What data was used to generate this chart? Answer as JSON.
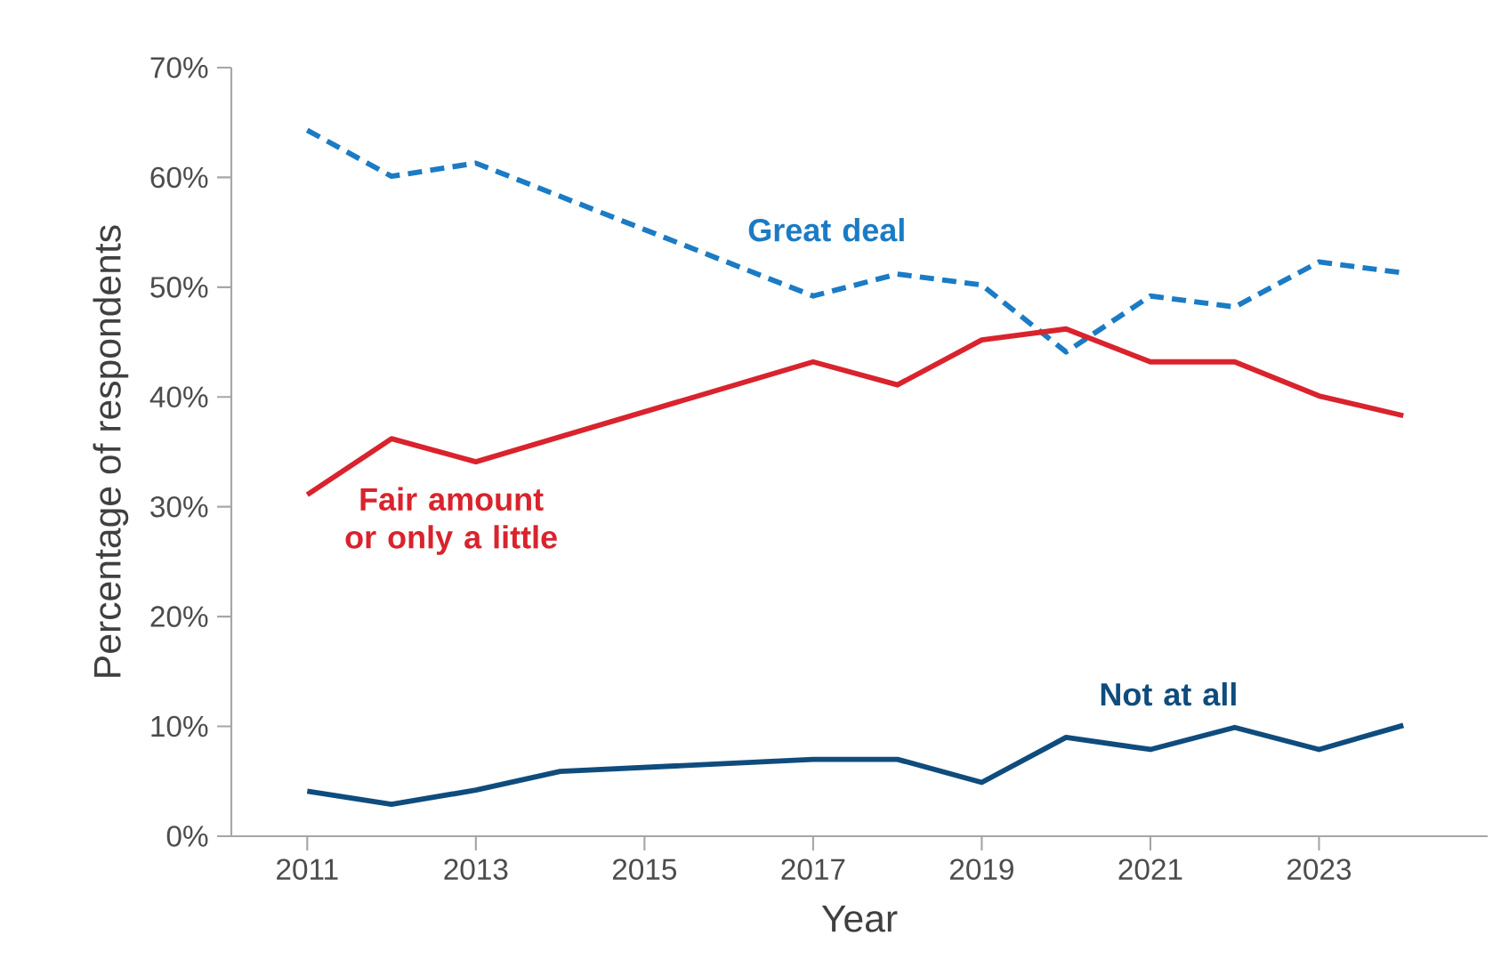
{
  "chart_data": {
    "type": "line",
    "xlabel": "Year",
    "ylabel": "Percentage of respondents",
    "x": [
      2011,
      2012,
      2013,
      2014,
      2017,
      2018,
      2019,
      2020,
      2021,
      2022,
      2023,
      2024
    ],
    "series": [
      {
        "name": "Great deal",
        "color": "#1b7bc4",
        "line_style": "dashed",
        "x": [
          2011,
          2012,
          2013,
          2017,
          2018,
          2019,
          2020,
          2021,
          2022,
          2023,
          2024
        ],
        "values": [
          64.3,
          60.1,
          61.3,
          49.2,
          51.2,
          50.2,
          44.1,
          49.2,
          48.2,
          52.3,
          51.3
        ]
      },
      {
        "name": "Fair amount or only a little",
        "color": "#d9232d",
        "line_style": "solid",
        "x": [
          2011,
          2012,
          2013,
          2017,
          2018,
          2019,
          2020,
          2021,
          2022,
          2023,
          2024
        ],
        "values": [
          31.1,
          36.2,
          34.1,
          43.2,
          41.1,
          45.2,
          46.2,
          43.2,
          43.2,
          40.1,
          38.3
        ]
      },
      {
        "name": "Not at all",
        "color": "#0f4c7d",
        "line_style": "solid",
        "values": [
          4.1,
          2.9,
          4.2,
          5.9,
          7.0,
          7.0,
          4.9,
          9.0,
          7.9,
          9.9,
          7.9,
          10.1
        ]
      }
    ],
    "xlim": [
      2010.1,
      2025
    ],
    "xticks": [
      2011,
      2013,
      2015,
      2017,
      2019,
      2021,
      2023
    ],
    "ylim": [
      0,
      70
    ],
    "yticks": [
      {
        "value": 0,
        "label": "0%"
      },
      {
        "value": 10,
        "label": "10%"
      },
      {
        "value": 20,
        "label": "20%"
      },
      {
        "value": 30,
        "label": "30%"
      },
      {
        "value": 40,
        "label": "40%"
      },
      {
        "value": 50,
        "label": "50%"
      },
      {
        "value": 60,
        "label": "60%"
      },
      {
        "value": 70,
        "label": "70%"
      }
    ],
    "grid": false,
    "legend": false,
    "marker": "none"
  }
}
